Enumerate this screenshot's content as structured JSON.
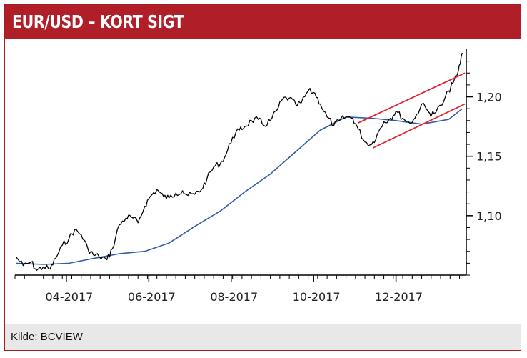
{
  "header": {
    "title": "EUR/USD – KORT SIGT"
  },
  "footer": {
    "source": "Kilde: BCVIEW"
  },
  "colors": {
    "header_bg": "#b01e28",
    "price_line": "#000000",
    "moving_average": "#2f5da8",
    "trend_channel": "#e0242c",
    "footer_bg": "#e8e8e8"
  },
  "chart_data": {
    "type": "line",
    "title": "EUR/USD – KORT SIGT",
    "x_tick_labels": [
      "04-2017",
      "06-2017",
      "08-2017",
      "10-2017",
      "12-2017"
    ],
    "x_tick_positions": [
      "2017-04-01",
      "2017-06-01",
      "2017-08-01",
      "2017-10-01",
      "2017-12-01"
    ],
    "y_tick_labels": [
      "1,10",
      "1,15",
      "1,20"
    ],
    "y_tick_values": [
      1.1,
      1.15,
      1.2
    ],
    "ylim": [
      1.05,
      1.24
    ],
    "xlim": [
      "2017-02-22",
      "2018-01-22"
    ],
    "grid": false,
    "y_axis_side": "right",
    "series": [
      {
        "kind": "price",
        "x": [
          "2017-02-23",
          "2017-02-28",
          "2017-03-06",
          "2017-03-10",
          "2017-03-15",
          "2017-03-20",
          "2017-03-24",
          "2017-03-29",
          "2017-04-03",
          "2017-04-07",
          "2017-04-12",
          "2017-04-17",
          "2017-04-21",
          "2017-04-25",
          "2017-05-01",
          "2017-05-05",
          "2017-05-10",
          "2017-05-15",
          "2017-05-19",
          "2017-05-24",
          "2017-05-29",
          "2017-06-02",
          "2017-06-07",
          "2017-06-12",
          "2017-06-16",
          "2017-06-21",
          "2017-06-26",
          "2017-06-30",
          "2017-07-05",
          "2017-07-10",
          "2017-07-14",
          "2017-07-19",
          "2017-07-24",
          "2017-07-28",
          "2017-08-02",
          "2017-08-07",
          "2017-08-11",
          "2017-08-16",
          "2017-08-21",
          "2017-08-25",
          "2017-08-30",
          "2017-09-04",
          "2017-09-08",
          "2017-09-13",
          "2017-09-18",
          "2017-09-22",
          "2017-09-27",
          "2017-10-02",
          "2017-10-06",
          "2017-10-11",
          "2017-10-16",
          "2017-10-20",
          "2017-10-25",
          "2017-10-30",
          "2017-11-03",
          "2017-11-08",
          "2017-11-13",
          "2017-11-17",
          "2017-11-22",
          "2017-11-27",
          "2017-12-01",
          "2017-12-06",
          "2017-12-11",
          "2017-12-15",
          "2017-12-20",
          "2017-12-26",
          "2017-12-29",
          "2018-01-04",
          "2018-01-09",
          "2018-01-12",
          "2018-01-16",
          "2018-01-19"
        ],
        "values": [
          1.065,
          1.058,
          1.061,
          1.054,
          1.057,
          1.055,
          1.064,
          1.075,
          1.081,
          1.088,
          1.084,
          1.072,
          1.067,
          1.066,
          1.063,
          1.072,
          1.092,
          1.098,
          1.099,
          1.094,
          1.108,
          1.116,
          1.122,
          1.116,
          1.115,
          1.119,
          1.121,
          1.117,
          1.118,
          1.122,
          1.131,
          1.141,
          1.144,
          1.151,
          1.166,
          1.172,
          1.175,
          1.18,
          1.181,
          1.176,
          1.18,
          1.189,
          1.198,
          1.199,
          1.193,
          1.195,
          1.205,
          1.203,
          1.194,
          1.183,
          1.176,
          1.18,
          1.183,
          1.182,
          1.173,
          1.162,
          1.16,
          1.168,
          1.179,
          1.182,
          1.188,
          1.182,
          1.178,
          1.182,
          1.194,
          1.186,
          1.186,
          1.193,
          1.205,
          1.211,
          1.221,
          1.237
        ]
      },
      {
        "kind": "moving_average",
        "x": [
          "2017-02-23",
          "2017-03-15",
          "2017-04-03",
          "2017-04-21",
          "2017-05-10",
          "2017-05-29",
          "2017-06-16",
          "2017-07-05",
          "2017-07-24",
          "2017-08-11",
          "2017-08-30",
          "2017-09-18",
          "2017-10-06",
          "2017-10-25",
          "2017-11-13",
          "2017-12-01",
          "2017-12-20",
          "2018-01-09",
          "2018-01-19"
        ],
        "values": [
          1.06,
          1.059,
          1.06,
          1.064,
          1.068,
          1.07,
          1.077,
          1.091,
          1.104,
          1.12,
          1.135,
          1.154,
          1.172,
          1.183,
          1.182,
          1.18,
          1.177,
          1.181,
          1.19
        ]
      },
      {
        "kind": "trend_channel_upper",
        "x": [
          "2017-11-03",
          "2018-01-21"
        ],
        "values": [
          1.178,
          1.22
        ]
      },
      {
        "kind": "trend_channel_lower",
        "x": [
          "2017-11-14",
          "2018-01-21"
        ],
        "values": [
          1.157,
          1.194
        ]
      }
    ]
  }
}
